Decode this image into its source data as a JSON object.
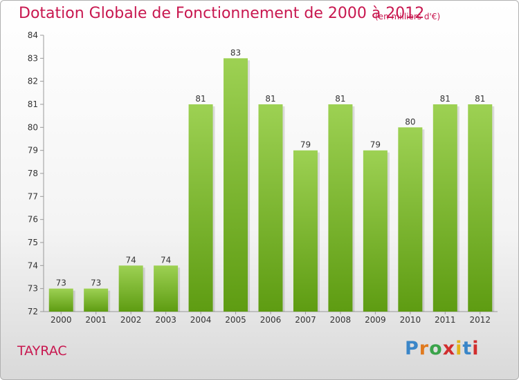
{
  "header": {
    "title": "Dotation Globale de Fonctionnement de 2000 à 2012",
    "unit_note": "(en milliers d'€)"
  },
  "footer": {
    "commune": "TAYRAC",
    "brand": [
      "P",
      "r",
      "o",
      "x",
      "i",
      "t",
      "i"
    ],
    "brand_colors": [
      "#3a86c8",
      "#e07a1f",
      "#3aa34a",
      "#d12e2e",
      "#e2b319",
      "#3a86c8",
      "#d12e2e"
    ]
  },
  "colors": {
    "bar_top": "#9dd153",
    "bar_bottom": "#5e9c12",
    "title": "#c8174f"
  },
  "chart_data": {
    "type": "bar",
    "title": "Dotation Globale de Fonctionnement de 2000 à 2012",
    "subtitle": "(en milliers d'€)",
    "xlabel": "",
    "ylabel": "",
    "categories": [
      "2000",
      "2001",
      "2002",
      "2003",
      "2004",
      "2005",
      "2006",
      "2007",
      "2008",
      "2009",
      "2010",
      "2011",
      "2012"
    ],
    "values": [
      73,
      73,
      74,
      74,
      81,
      83,
      81,
      79,
      81,
      79,
      80,
      81,
      81
    ],
    "ylim": [
      72,
      84
    ],
    "yticks": [
      72,
      73,
      74,
      75,
      76,
      77,
      78,
      79,
      80,
      81,
      82,
      83,
      84
    ],
    "grid": false,
    "legend": "none"
  }
}
